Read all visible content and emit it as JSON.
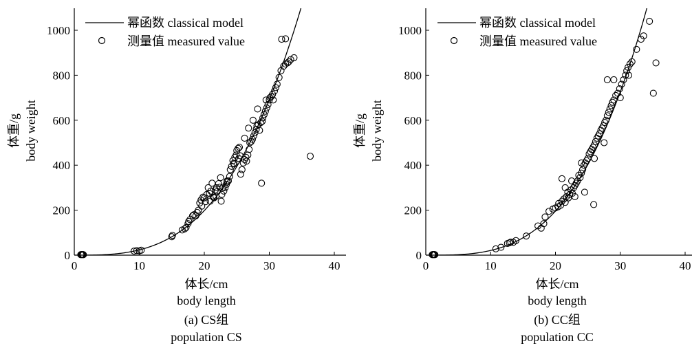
{
  "chart_data": [
    {
      "type": "scatter",
      "panel": "a",
      "xlabel": "体长/cm",
      "xlabel_en": "body length",
      "ylabel": "体重/g",
      "ylabel_en": "body weight",
      "caption": "(a) CS组",
      "caption_en": "population CS",
      "xlim": [
        0,
        42
      ],
      "ylim": [
        0,
        1100
      ],
      "xticks": [
        "0",
        "10",
        "20",
        "30",
        "40"
      ],
      "yticks": [
        "0",
        "200",
        "400",
        "600",
        "800",
        "1000"
      ],
      "legend": {
        "position": "top-left",
        "line_label": "幂函数 classical model",
        "marker_label": "测量值 measured value"
      },
      "model": {
        "form": "power",
        "a": 0.0195,
        "b": 3.08
      },
      "points": [
        [
          1.0,
          2
        ],
        [
          1.1,
          3
        ],
        [
          1.2,
          2
        ],
        [
          1.3,
          3
        ],
        [
          1.4,
          2
        ],
        [
          9.2,
          18
        ],
        [
          9.6,
          20
        ],
        [
          10.0,
          19
        ],
        [
          10.3,
          22
        ],
        [
          15.0,
          82
        ],
        [
          15.1,
          88
        ],
        [
          16.6,
          112
        ],
        [
          17.0,
          117
        ],
        [
          17.2,
          123
        ],
        [
          17.6,
          150
        ],
        [
          17.8,
          158
        ],
        [
          18.4,
          180
        ],
        [
          18.7,
          175
        ],
        [
          18.9,
          190
        ],
        [
          19.1,
          200
        ],
        [
          19.3,
          232
        ],
        [
          19.5,
          245
        ],
        [
          19.8,
          258
        ],
        [
          20.0,
          255
        ],
        [
          20.2,
          238
        ],
        [
          20.4,
          270
        ],
        [
          20.6,
          300
        ],
        [
          20.8,
          275
        ],
        [
          21.0,
          285
        ],
        [
          21.2,
          320
        ],
        [
          21.4,
          258
        ],
        [
          21.5,
          255
        ],
        [
          21.7,
          290
        ],
        [
          21.9,
          300
        ],
        [
          22.0,
          283
        ],
        [
          22.2,
          318
        ],
        [
          22.4,
          302
        ],
        [
          22.6,
          240
        ],
        [
          22.7,
          270
        ],
        [
          22.9,
          302
        ],
        [
          23.0,
          285
        ],
        [
          23.2,
          300
        ],
        [
          23.4,
          315
        ],
        [
          23.5,
          325
        ],
        [
          23.7,
          330
        ],
        [
          23.9,
          350
        ],
        [
          24.0,
          380
        ],
        [
          24.2,
          395
        ],
        [
          24.4,
          420
        ],
        [
          24.5,
          408
        ],
        [
          24.7,
          435
        ],
        [
          24.9,
          445
        ],
        [
          25.0,
          465
        ],
        [
          25.2,
          475
        ],
        [
          25.4,
          480
        ],
        [
          25.5,
          442
        ],
        [
          25.6,
          360
        ],
        [
          25.8,
          380
        ],
        [
          26.0,
          410
        ],
        [
          26.2,
          425
        ],
        [
          26.4,
          435
        ],
        [
          26.5,
          418
        ],
        [
          26.7,
          445
        ],
        [
          26.9,
          470
        ],
        [
          27.0,
          500
        ],
        [
          27.2,
          505
        ],
        [
          27.4,
          515
        ],
        [
          27.6,
          530
        ],
        [
          27.8,
          545
        ],
        [
          28.0,
          560
        ],
        [
          28.1,
          575
        ],
        [
          28.3,
          580
        ],
        [
          28.5,
          555
        ],
        [
          28.7,
          590
        ],
        [
          28.9,
          595
        ],
        [
          29.0,
          610
        ],
        [
          29.2,
          625
        ],
        [
          29.4,
          640
        ],
        [
          29.6,
          655
        ],
        [
          29.8,
          670
        ],
        [
          30.0,
          690
        ],
        [
          30.1,
          700
        ],
        [
          30.3,
          705
        ],
        [
          30.5,
          715
        ],
        [
          30.6,
          690
        ],
        [
          30.8,
          730
        ],
        [
          31.0,
          745
        ],
        [
          31.2,
          760
        ],
        [
          31.5,
          790
        ],
        [
          31.8,
          820
        ],
        [
          32.2,
          840
        ],
        [
          32.5,
          850
        ],
        [
          32.8,
          855
        ],
        [
          33.0,
          860
        ],
        [
          33.3,
          870
        ],
        [
          33.8,
          878
        ],
        [
          28.8,
          320
        ],
        [
          36.3,
          440
        ],
        [
          31.9,
          960
        ],
        [
          32.5,
          962
        ],
        [
          23.5,
          330
        ],
        [
          24.6,
          405
        ],
        [
          25.3,
          430
        ],
        [
          27.5,
          600
        ],
        [
          28.2,
          650
        ],
        [
          29.5,
          690
        ],
        [
          26.2,
          520
        ],
        [
          22.5,
          345
        ],
        [
          21.8,
          262
        ],
        [
          20.9,
          240
        ],
        [
          19.6,
          218
        ],
        [
          18.2,
          175
        ],
        [
          17.5,
          140
        ],
        [
          26.8,
          565
        ]
      ]
    },
    {
      "type": "scatter",
      "panel": "b",
      "xlabel": "体长/cm",
      "xlabel_en": "body length",
      "ylabel": "体重/g",
      "ylabel_en": "body weight",
      "caption": "(b) CC组",
      "caption_en": "population CC",
      "xlim": [
        0,
        42
      ],
      "ylim": [
        0,
        1100
      ],
      "xticks": [
        "0",
        "10",
        "20",
        "30",
        "40"
      ],
      "yticks": [
        "0",
        "200",
        "400",
        "600",
        "800",
        "1000"
      ],
      "legend": {
        "position": "top-left",
        "line_label": "幂函数 classical model",
        "marker_label": "测量值 measured value"
      },
      "model": {
        "form": "power",
        "a": 0.0123,
        "b": 3.23
      },
      "points": [
        [
          1.0,
          2
        ],
        [
          1.1,
          3
        ],
        [
          1.2,
          2
        ],
        [
          1.3,
          3
        ],
        [
          1.4,
          2
        ],
        [
          10.8,
          28
        ],
        [
          11.6,
          35
        ],
        [
          12.6,
          52
        ],
        [
          12.9,
          55
        ],
        [
          13.1,
          58
        ],
        [
          13.5,
          57
        ],
        [
          13.9,
          65
        ],
        [
          15.5,
          85
        ],
        [
          17.3,
          130
        ],
        [
          17.8,
          120
        ],
        [
          18.2,
          140
        ],
        [
          18.4,
          170
        ],
        [
          19.0,
          195
        ],
        [
          19.6,
          205
        ],
        [
          20.0,
          210
        ],
        [
          20.4,
          215
        ],
        [
          20.8,
          222
        ],
        [
          21.0,
          240
        ],
        [
          21.3,
          250
        ],
        [
          21.5,
          235
        ],
        [
          21.7,
          260
        ],
        [
          21.9,
          280
        ],
        [
          22.0,
          255
        ],
        [
          22.2,
          270
        ],
        [
          22.4,
          290
        ],
        [
          22.6,
          275
        ],
        [
          22.8,
          300
        ],
        [
          23.0,
          310
        ],
        [
          23.2,
          320
        ],
        [
          23.4,
          330
        ],
        [
          23.6,
          355
        ],
        [
          23.8,
          345
        ],
        [
          24.0,
          365
        ],
        [
          24.2,
          380
        ],
        [
          24.4,
          400
        ],
        [
          24.6,
          410
        ],
        [
          24.8,
          420
        ],
        [
          25.0,
          430
        ],
        [
          25.2,
          450
        ],
        [
          25.4,
          460
        ],
        [
          25.6,
          470
        ],
        [
          25.8,
          480
        ],
        [
          26.0,
          490
        ],
        [
          26.2,
          505
        ],
        [
          26.4,
          520
        ],
        [
          26.6,
          530
        ],
        [
          26.8,
          540
        ],
        [
          27.0,
          555
        ],
        [
          27.2,
          565
        ],
        [
          27.4,
          575
        ],
        [
          27.6,
          590
        ],
        [
          27.8,
          600
        ],
        [
          28.0,
          620
        ],
        [
          28.2,
          635
        ],
        [
          28.4,
          650
        ],
        [
          28.6,
          665
        ],
        [
          28.8,
          680
        ],
        [
          29.0,
          690
        ],
        [
          29.3,
          710
        ],
        [
          29.6,
          720
        ],
        [
          29.9,
          740
        ],
        [
          30.2,
          760
        ],
        [
          30.5,
          780
        ],
        [
          30.8,
          800
        ],
        [
          31.0,
          820
        ],
        [
          31.2,
          835
        ],
        [
          31.5,
          850
        ],
        [
          31.8,
          860
        ],
        [
          32.5,
          915
        ],
        [
          33.2,
          960
        ],
        [
          33.6,
          975
        ],
        [
          34.5,
          1040
        ],
        [
          35.1,
          720
        ],
        [
          35.5,
          855
        ],
        [
          25.9,
          225
        ],
        [
          21.0,
          340
        ],
        [
          28.0,
          780
        ],
        [
          24.5,
          280
        ],
        [
          22.5,
          330
        ],
        [
          20.5,
          230
        ],
        [
          23.0,
          260
        ],
        [
          27.5,
          500
        ],
        [
          29.0,
          780
        ],
        [
          26.0,
          430
        ],
        [
          24.0,
          410
        ],
        [
          21.5,
          300
        ],
        [
          30.0,
          700
        ],
        [
          31.3,
          800
        ]
      ]
    }
  ]
}
